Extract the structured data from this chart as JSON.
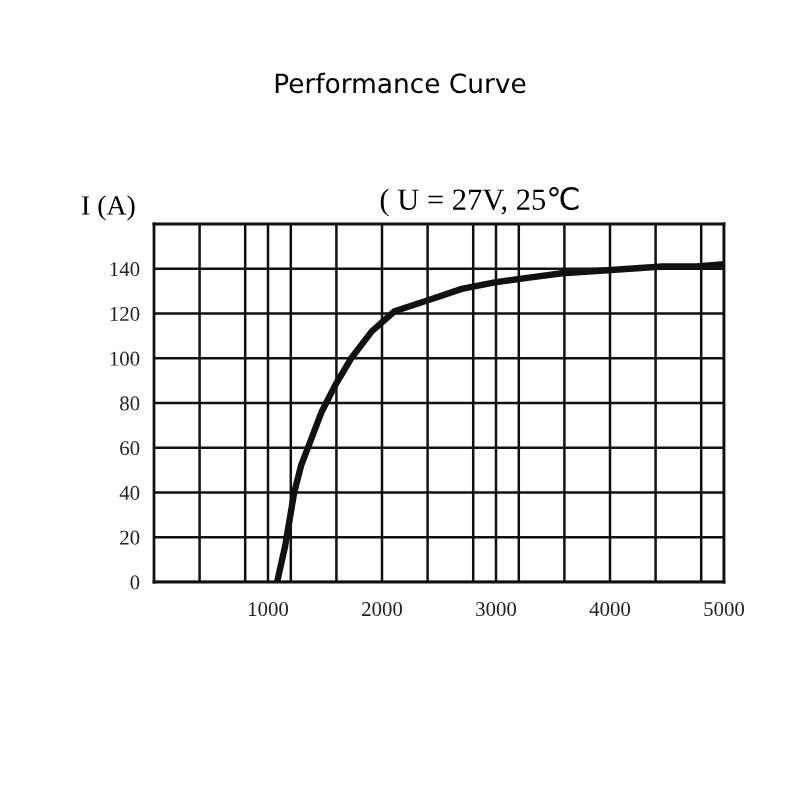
{
  "chart_data": {
    "type": "line",
    "title": "Performance Curve",
    "annotations": [
      "( U = 27V, 25℃"
    ],
    "ylabel": "I (A)",
    "x": [
      1080,
      1150,
      1190,
      1230,
      1290,
      1380,
      1470,
      1590,
      1730,
      1910,
      2110,
      2410,
      2700,
      3000,
      3290,
      3580,
      3880,
      4170,
      4460,
      4760,
      5000
    ],
    "series": [
      {
        "color": "#111111",
        "values": [
          0,
          16,
          28,
          40,
          52,
          64,
          76,
          88,
          100,
          112,
          121,
          126,
          131,
          134,
          136,
          138,
          139,
          140,
          141,
          141,
          142
        ]
      }
    ],
    "xlim": [
      0,
      5000
    ],
    "ylim": [
      0,
      160
    ],
    "xticks": [
      {
        "value": 400,
        "label": null
      },
      {
        "value": 800,
        "label": null
      },
      1000,
      {
        "value": 1200,
        "label": null
      },
      {
        "value": 1600,
        "label": null
      },
      2000,
      {
        "value": 2400,
        "label": null
      },
      {
        "value": 2800,
        "label": null
      },
      3000,
      {
        "value": 3200,
        "label": null
      },
      {
        "value": 3600,
        "label": null
      },
      4000,
      {
        "value": 4400,
        "label": null
      },
      {
        "value": 4800,
        "label": null
      },
      5000
    ],
    "yticks": [
      0,
      20,
      40,
      60,
      80,
      100,
      120,
      140
    ],
    "grid": true
  }
}
